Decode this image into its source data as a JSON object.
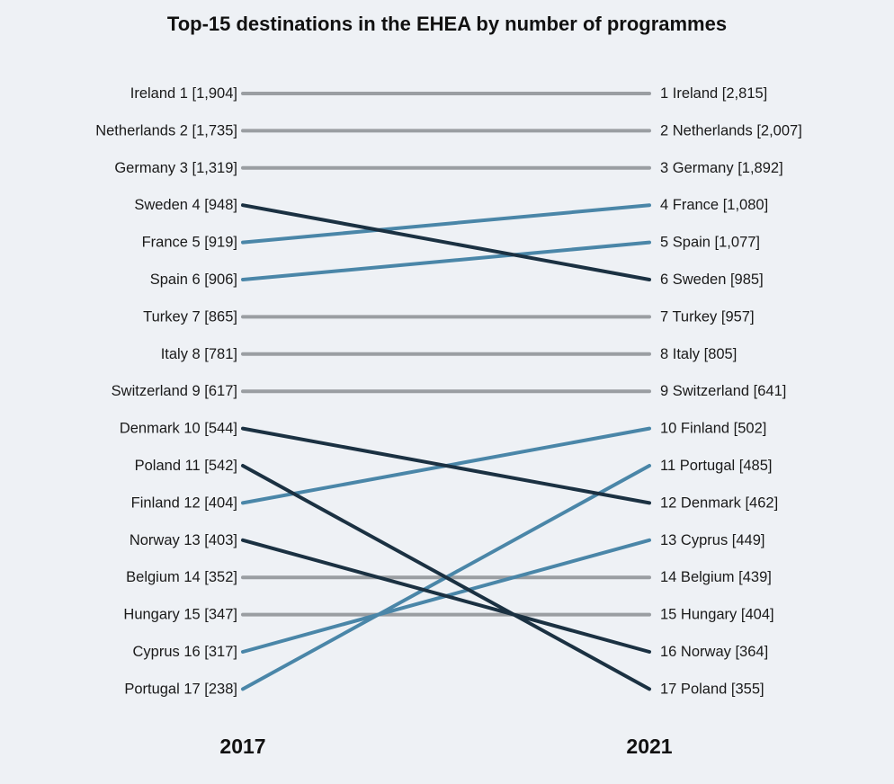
{
  "chart_data": {
    "type": "line",
    "title": "Top-15 destinations in the EHEA by number of programmes",
    "x": [
      "2017",
      "2021"
    ],
    "series": [
      {
        "name": "Ireland",
        "rank": [
          1,
          1
        ],
        "values": [
          1904,
          2815
        ],
        "label_2017": "Ireland 1 [1,904]",
        "label_2021": "1 Ireland [2,815]",
        "status": "same"
      },
      {
        "name": "Netherlands",
        "rank": [
          2,
          2
        ],
        "values": [
          1735,
          2007
        ],
        "label_2017": "Netherlands 2 [1,735]",
        "label_2021": "2 Netherlands [2,007]",
        "status": "same"
      },
      {
        "name": "Germany",
        "rank": [
          3,
          3
        ],
        "values": [
          1319,
          1892
        ],
        "label_2017": "Germany 3 [1,319]",
        "label_2021": "3 Germany [1,892]",
        "status": "same"
      },
      {
        "name": "Sweden",
        "rank": [
          4,
          6
        ],
        "values": [
          948,
          985
        ],
        "label_2017": "Sweden 4 [948]",
        "label_2021": "6 Sweden [985]",
        "status": "down"
      },
      {
        "name": "France",
        "rank": [
          5,
          4
        ],
        "values": [
          919,
          1080
        ],
        "label_2017": "France 5 [919]",
        "label_2021": "4 France [1,080]",
        "status": "up"
      },
      {
        "name": "Spain",
        "rank": [
          6,
          5
        ],
        "values": [
          906,
          1077
        ],
        "label_2017": "Spain 6 [906]",
        "label_2021": "5 Spain [1,077]",
        "status": "up"
      },
      {
        "name": "Turkey",
        "rank": [
          7,
          7
        ],
        "values": [
          865,
          957
        ],
        "label_2017": "Turkey 7 [865]",
        "label_2021": "7 Turkey [957]",
        "status": "same"
      },
      {
        "name": "Italy",
        "rank": [
          8,
          8
        ],
        "values": [
          781,
          805
        ],
        "label_2017": "Italy 8 [781]",
        "label_2021": "8 Italy [805]",
        "status": "same"
      },
      {
        "name": "Switzerland",
        "rank": [
          9,
          9
        ],
        "values": [
          617,
          641
        ],
        "label_2017": "Switzerland 9 [617]",
        "label_2021": "9 Switzerland [641]",
        "status": "same"
      },
      {
        "name": "Denmark",
        "rank": [
          10,
          12
        ],
        "values": [
          544,
          462
        ],
        "label_2017": "Denmark 10 [544]",
        "label_2021": "12 Denmark [462]",
        "status": "down"
      },
      {
        "name": "Poland",
        "rank": [
          11,
          17
        ],
        "values": [
          542,
          355
        ],
        "label_2017": "Poland 11 [542]",
        "label_2021": "17 Poland [355]",
        "status": "down"
      },
      {
        "name": "Finland",
        "rank": [
          12,
          10
        ],
        "values": [
          404,
          502
        ],
        "label_2017": "Finland 12 [404]",
        "label_2021": "10 Finland [502]",
        "status": "up"
      },
      {
        "name": "Norway",
        "rank": [
          13,
          16
        ],
        "values": [
          403,
          364
        ],
        "label_2017": "Norway 13 [403]",
        "label_2021": "16 Norway [364]",
        "status": "down"
      },
      {
        "name": "Belgium",
        "rank": [
          14,
          14
        ],
        "values": [
          352,
          439
        ],
        "label_2017": "Belgium 14 [352]",
        "label_2021": "14 Belgium [439]",
        "status": "same"
      },
      {
        "name": "Hungary",
        "rank": [
          15,
          15
        ],
        "values": [
          347,
          404
        ],
        "label_2017": "Hungary 15 [347]",
        "label_2021": "15 Hungary [404]",
        "status": "same"
      },
      {
        "name": "Cyprus",
        "rank": [
          16,
          13
        ],
        "values": [
          317,
          449
        ],
        "label_2017": "Cyprus 16 [317]",
        "label_2021": "13 Cyprus [449]",
        "status": "up"
      },
      {
        "name": "Portugal",
        "rank": [
          17,
          11
        ],
        "values": [
          238,
          485
        ],
        "label_2017": "Portugal 17 [238]",
        "label_2021": "11 Portugal [485]",
        "status": "up"
      }
    ],
    "colors": {
      "same": "#9a9ea2",
      "up": "#4a86a8",
      "down": "#1b3142",
      "background": "#eef1f5"
    },
    "grid": false,
    "legend": "none"
  }
}
